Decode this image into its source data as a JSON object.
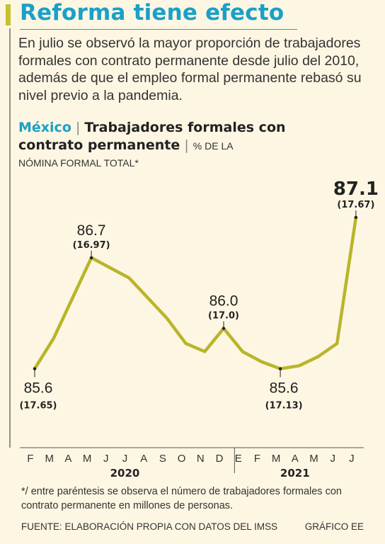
{
  "headline": "Reforma tiene efecto",
  "summary": "En julio se observó la mayor proporción de trabajadores formales con contrato permanente desde julio del 2010, además de que el empleo formal permanente rebasó su nivel previo a la pandemia.",
  "chart_title": {
    "country": "México",
    "separator": "|",
    "metric": "Trabajadores formales con contrato permanente",
    "unit_line1": "% DE LA",
    "unit_line2": "NÓMINA FORMAL TOTAL*"
  },
  "colors": {
    "headline": "#1aa0c8",
    "accent": "#c6c130",
    "line": "#b8b52a",
    "background": "#fdf6e3"
  },
  "chart_data": {
    "type": "line",
    "x": [
      "F",
      "M",
      "A",
      "M",
      "J",
      "J",
      "A",
      "S",
      "O",
      "N",
      "D",
      "E",
      "F",
      "M",
      "A",
      "M",
      "J",
      "J"
    ],
    "year_groups": [
      {
        "label": "2020",
        "start": 0,
        "end": 10
      },
      {
        "label": "2021",
        "start": 11,
        "end": 17
      }
    ],
    "series": [
      {
        "values": [
          85.6,
          85.9,
          86.3,
          86.7,
          86.6,
          86.5,
          86.3,
          86.1,
          85.85,
          85.77,
          86.0,
          85.77,
          85.67,
          85.6,
          85.63,
          85.72,
          85.85,
          87.1
        ]
      }
    ],
    "ylim": [
      85.0,
      87.5
    ],
    "annotations": [
      {
        "index": 0,
        "value": "85.6",
        "detail": "(17.65)",
        "position": "below",
        "bold": false
      },
      {
        "index": 3,
        "value": "86.7",
        "detail": "(16.97)",
        "position": "above",
        "bold": false
      },
      {
        "index": 10,
        "value": "86.0",
        "detail": "(17.0)",
        "position": "above",
        "bold": false
      },
      {
        "index": 13,
        "value": "85.6",
        "detail": "(17.13)",
        "position": "below",
        "bold": false
      },
      {
        "index": 17,
        "value": "87.1",
        "detail": "(17.67)",
        "position": "above",
        "bold": true
      }
    ]
  },
  "footnote": "*/ entre paréntesis se observa el número de trabajadores formales con contrato permanente en millones de personas.",
  "source": "FUENTE: ELABORACIÓN PROPIA CON DATOS DEL IMSS",
  "credit": "GRÁFICO EE"
}
